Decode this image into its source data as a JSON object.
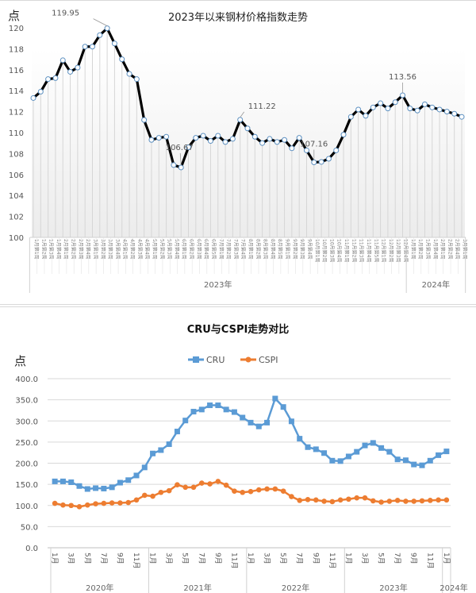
{
  "chart_data": [
    {
      "type": "line",
      "title": "2023年以来钢材价格指数走势",
      "ylabel": "点",
      "xlabel": "",
      "ylim": [
        100,
        120
      ],
      "yticks": [
        100,
        102,
        104,
        106,
        108,
        110,
        112,
        114,
        116,
        118,
        120
      ],
      "grid": "vertical drop lines per point",
      "year_groups": [
        {
          "label": "2023年",
          "count": 51
        },
        {
          "label": "2024年",
          "count": 8
        }
      ],
      "categories": [
        "1月第1周",
        "1月第2周",
        "1月第3周",
        "1月第4周",
        "2月第1周",
        "2月第2周",
        "2月第3周",
        "2月第4周",
        "3月第1周",
        "3月第2周",
        "3月第3周",
        "3月第4周",
        "4月第1周",
        "4月第2周",
        "4月第3周",
        "4月第4周",
        "5月第1周",
        "5月第2周",
        "5月第3周",
        "5月第4周",
        "6月第1周",
        "6月第2周",
        "6月第3周",
        "6月第4周",
        "6月第5周",
        "7月第1周",
        "7月第2周",
        "7月第3周",
        "7月第4周",
        "8月第1周",
        "8月第2周",
        "8月第3周",
        "8月第4周",
        "8月第5周",
        "9月第1周",
        "9月第2周",
        "9月第3周",
        "9月第4周",
        "10月第1周",
        "10月第2周",
        "10月第3周",
        "10月第4周",
        "11月第1周",
        "11月第2周",
        "11月第3周",
        "11月第4周",
        "11月第5周",
        "12月第1周",
        "12月第2周",
        "12月第3周",
        "12月第4周",
        "1月第1周",
        "1月第2周",
        "1月第3周",
        "1月第4周",
        "2月第1周",
        "2月第2周",
        "2月第4周",
        "3月第1周"
      ],
      "series": [
        {
          "name": "钢材价格指数",
          "values": [
            113.3,
            113.9,
            115.1,
            115.2,
            116.9,
            115.8,
            116.2,
            118.2,
            118.2,
            119.3,
            119.95,
            118.5,
            117.0,
            115.6,
            115.1,
            111.2,
            109.3,
            109.5,
            109.6,
            106.9,
            106.67,
            108.6,
            109.5,
            109.7,
            109.2,
            109.7,
            109.1,
            109.4,
            111.22,
            110.4,
            109.6,
            109.0,
            109.4,
            109.1,
            109.3,
            108.5,
            109.5,
            108.3,
            107.16,
            107.2,
            107.5,
            108.3,
            109.8,
            111.5,
            112.2,
            111.6,
            112.4,
            112.8,
            112.3,
            112.9,
            113.56,
            112.3,
            112.1,
            112.7,
            112.4,
            112.2,
            112.0,
            111.8,
            111.5
          ]
        }
      ],
      "annotations": [
        {
          "text": "119.95",
          "index": 10
        },
        {
          "text": "106.67",
          "index": 20
        },
        {
          "text": "111.22",
          "index": 28
        },
        {
          "text": "107.16",
          "index": 38
        },
        {
          "text": "113.56",
          "index": 50
        }
      ]
    },
    {
      "type": "line",
      "title": "CRU与CSPI走势对比",
      "ylabel": "点",
      "xlabel": "",
      "ylim": [
        0,
        400
      ],
      "yticks": [
        "0.0",
        "50.0",
        "100.0",
        "150.0",
        "200.0",
        "250.0",
        "300.0",
        "350.0",
        "400.0"
      ],
      "grid": "horizontal",
      "legend": "top-center",
      "year_groups": [
        {
          "label": "2020年",
          "count": 12
        },
        {
          "label": "2021年",
          "count": 12
        },
        {
          "label": "2022年",
          "count": 12
        },
        {
          "label": "2023年",
          "count": 12
        },
        {
          "label": "2024年",
          "count": 1
        }
      ],
      "tick_labels": [
        "1月",
        "",
        "3月",
        "",
        "5月",
        "",
        "7月",
        "",
        "9月",
        "",
        "11月",
        ""
      ],
      "categories": [
        "2020-01",
        "2020-02",
        "2020-03",
        "2020-04",
        "2020-05",
        "2020-06",
        "2020-07",
        "2020-08",
        "2020-09",
        "2020-10",
        "2020-11",
        "2020-12",
        "2021-01",
        "2021-02",
        "2021-03",
        "2021-04",
        "2021-05",
        "2021-06",
        "2021-07",
        "2021-08",
        "2021-09",
        "2021-10",
        "2021-11",
        "2021-12",
        "2022-01",
        "2022-02",
        "2022-03",
        "2022-04",
        "2022-05",
        "2022-06",
        "2022-07",
        "2022-08",
        "2022-09",
        "2022-10",
        "2022-11",
        "2022-12",
        "2023-01",
        "2023-02",
        "2023-03",
        "2023-04",
        "2023-05",
        "2023-06",
        "2023-07",
        "2023-08",
        "2023-09",
        "2023-10",
        "2023-11",
        "2023-12",
        "2024-01"
      ],
      "series": [
        {
          "name": "CRU",
          "color": "#5b9bd5",
          "marker": "square",
          "values": [
            157,
            157,
            155,
            146,
            139,
            141,
            140,
            143,
            154,
            160,
            171,
            190,
            223,
            231,
            245,
            275,
            301,
            322,
            327,
            337,
            337,
            327,
            321,
            308,
            296,
            287,
            296,
            353,
            333,
            299,
            258,
            238,
            233,
            224,
            206,
            205,
            216,
            227,
            242,
            248,
            236,
            227,
            209,
            207,
            197,
            195,
            206,
            219,
            228
          ]
        },
        {
          "name": "CSPI",
          "color": "#ed7d31",
          "marker": "circle",
          "values": [
            105,
            101,
            100,
            97,
            101,
            104,
            105,
            106,
            106,
            107,
            113,
            124,
            122,
            131,
            135,
            149,
            143,
            143,
            153,
            151,
            157,
            148,
            134,
            131,
            133,
            137,
            139,
            139,
            134,
            121,
            112,
            114,
            113,
            110,
            109,
            113,
            115,
            118,
            118,
            111,
            108,
            110,
            112,
            110,
            110,
            111,
            112,
            113,
            113
          ]
        }
      ]
    }
  ],
  "top_chart": {
    "title": "2023年以来钢材价格指数走势",
    "unit": "点"
  },
  "bottom_chart": {
    "title": "CRU与CSPI走势对比",
    "unit": "点",
    "legend": [
      "CRU",
      "CSPI"
    ]
  }
}
